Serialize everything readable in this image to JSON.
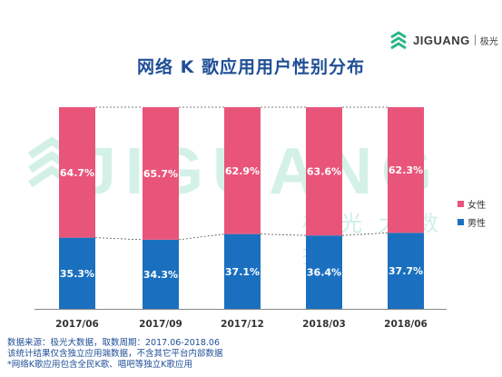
{
  "logo": {
    "text": "JIGUANG",
    "cn": "极光",
    "icon": "jiguang-logo-icon",
    "color": "#2bb58a"
  },
  "title": "网络 K 歌应用用户性别分布",
  "watermark": {
    "latin": "JIGUANG",
    "cn": "极光大数据"
  },
  "chart_data": {
    "type": "bar",
    "stacked": true,
    "categories": [
      "2017/06",
      "2017/09",
      "2017/12",
      "2018/03",
      "2018/06"
    ],
    "series": [
      {
        "name": "男性",
        "values": [
          35.3,
          34.3,
          37.1,
          36.4,
          37.7
        ],
        "labels": [
          "35.3%",
          "34.3%",
          "37.1%",
          "36.4%",
          "37.7%"
        ],
        "color": "#1a70bf"
      },
      {
        "name": "女性",
        "values": [
          64.7,
          65.7,
          62.9,
          63.6,
          62.3
        ],
        "labels": [
          "64.7%",
          "65.7%",
          "62.9%",
          "63.6%",
          "62.3%"
        ],
        "color": "#e9557a"
      }
    ],
    "ylim": [
      0,
      100
    ],
    "grid": false,
    "legend": "right",
    "connector_lines": "dashed"
  },
  "legend": {
    "items": [
      {
        "label": "女性",
        "color": "#e9557a"
      },
      {
        "label": "男性",
        "color": "#1a70bf"
      }
    ]
  },
  "notes": [
    "数据来源：极光大数据，取数周期：2017.06-2018.06",
    "该统计结果仅含独立应用端数据，不含其它平台内部数据",
    "*网络K歌应用包含全民K歌、唱吧等独立K歌应用"
  ]
}
